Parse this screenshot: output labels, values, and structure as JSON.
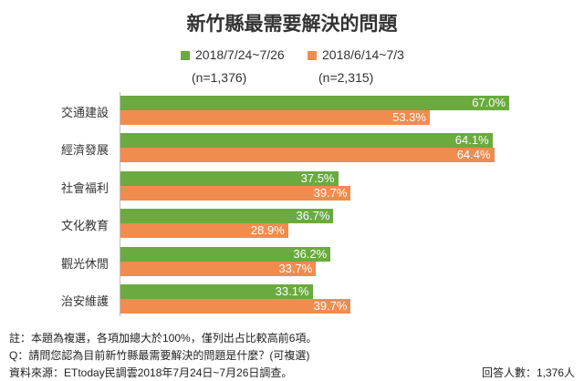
{
  "chart_data": {
    "type": "bar",
    "orientation": "horizontal",
    "title": "新竹縣最需要解決的問題",
    "categories": [
      "交通建設",
      "經濟發展",
      "社會福利",
      "文化教育",
      "觀光休閒",
      "治安維護"
    ],
    "series": [
      {
        "name": "2018/7/24~7/26",
        "n_label": "(n=1,376)",
        "color": "#6aaa3e",
        "values": [
          67.0,
          64.1,
          37.5,
          36.7,
          36.2,
          33.1
        ],
        "labels": [
          "67.0%",
          "64.1%",
          "37.5%",
          "36.7%",
          "36.2%",
          "33.1%"
        ]
      },
      {
        "name": "2018/6/14~7/3",
        "n_label": "(n=2,315)",
        "color": "#f08c4e",
        "values": [
          53.3,
          64.4,
          39.7,
          28.9,
          33.7,
          39.7
        ],
        "labels": [
          "53.3%",
          "64.4%",
          "39.7%",
          "28.9%",
          "33.7%",
          "39.7%"
        ]
      }
    ],
    "xlim": [
      0,
      100
    ],
    "grid": false,
    "legend": "top-center"
  },
  "notes": {
    "note1": "註：本題為複選，各項加總大於100%，僅列出占比較高前6項。",
    "note2": "Q：請問您認為目前新竹縣最需要解決的問題是什麼？(可複選)",
    "source": "資料來源：ETtoday民調雲2018年7月24日~7月26日調查。",
    "sample": "回答人數：1,376人"
  }
}
